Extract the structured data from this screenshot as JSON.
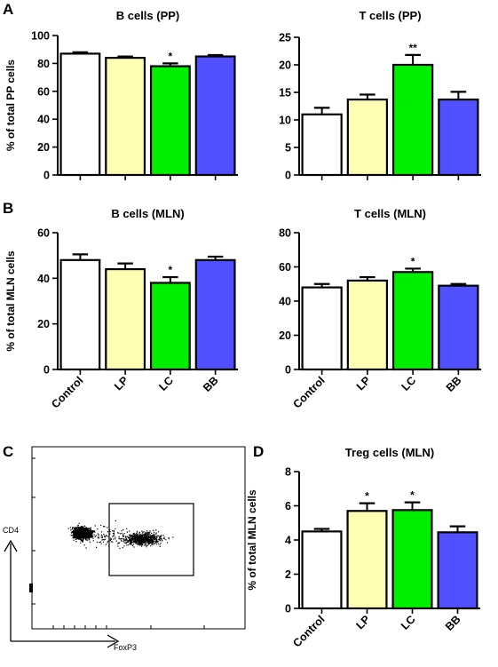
{
  "panel_labels": {
    "A": "A",
    "B": "B",
    "C": "C",
    "D": "D"
  },
  "flow": {
    "y_axis_label": "CD4",
    "x_axis_label": "FoxP3"
  },
  "colors": {
    "Control": "#ffffff",
    "LP": "#ffffb3",
    "LC": "#00ee00",
    "BB": "#5050ff",
    "stroke": "#000000"
  },
  "chart_data": [
    {
      "type": "bar",
      "title": "B cells (PP)",
      "ylabel": "% of total PP cells",
      "categories": [
        "Control",
        "LP",
        "LC",
        "BB"
      ],
      "values": [
        87,
        84,
        78,
        85
      ],
      "errors": [
        1,
        1,
        2,
        1
      ],
      "significance": [
        "",
        "",
        "*",
        ""
      ],
      "ylim": [
        0,
        100
      ],
      "yticks": [
        "0",
        "20",
        "40",
        "60",
        "80",
        "100"
      ],
      "show_xticklabels": false
    },
    {
      "type": "bar",
      "title": "T cells (PP)",
      "ylabel": "",
      "categories": [
        "Control",
        "LP",
        "LC",
        "BB"
      ],
      "values": [
        11,
        13.7,
        20,
        13.7
      ],
      "errors": [
        1.2,
        0.9,
        1.8,
        1.4
      ],
      "significance": [
        "",
        "",
        "**",
        ""
      ],
      "ylim": [
        0,
        25
      ],
      "yticks": [
        "0",
        "5",
        "10",
        "15",
        "20",
        "25"
      ],
      "show_xticklabels": false
    },
    {
      "type": "bar",
      "title": "B cells (MLN)",
      "ylabel": "% of total MLN cells",
      "categories": [
        "Control",
        "LP",
        "LC",
        "BB"
      ],
      "values": [
        48,
        44,
        38,
        48
      ],
      "errors": [
        2.5,
        2.5,
        2.5,
        1.5
      ],
      "significance": [
        "",
        "",
        "*",
        ""
      ],
      "ylim": [
        0,
        60
      ],
      "yticks": [
        "0",
        "20",
        "40",
        "60"
      ],
      "show_xticklabels": true
    },
    {
      "type": "bar",
      "title": "T cells (MLN)",
      "ylabel": "",
      "categories": [
        "Control",
        "LP",
        "LC",
        "BB"
      ],
      "values": [
        48,
        52,
        57,
        49
      ],
      "errors": [
        2,
        2,
        2,
        1
      ],
      "significance": [
        "",
        "",
        "*",
        ""
      ],
      "ylim": [
        0,
        80
      ],
      "yticks": [
        "0",
        "20",
        "40",
        "60",
        "80"
      ],
      "show_xticklabels": true
    },
    {
      "type": "bar",
      "title": "Treg cells (MLN)",
      "ylabel": "% of total MLN cells",
      "categories": [
        "Control",
        "LP",
        "LC",
        "BB"
      ],
      "values": [
        4.5,
        5.7,
        5.75,
        4.45
      ],
      "errors": [
        0.15,
        0.45,
        0.45,
        0.35
      ],
      "significance": [
        "",
        "*",
        "*",
        ""
      ],
      "ylim": [
        0,
        8
      ],
      "yticks": [
        "0",
        "2",
        "4",
        "6",
        "8"
      ],
      "show_xticklabels": true
    }
  ]
}
